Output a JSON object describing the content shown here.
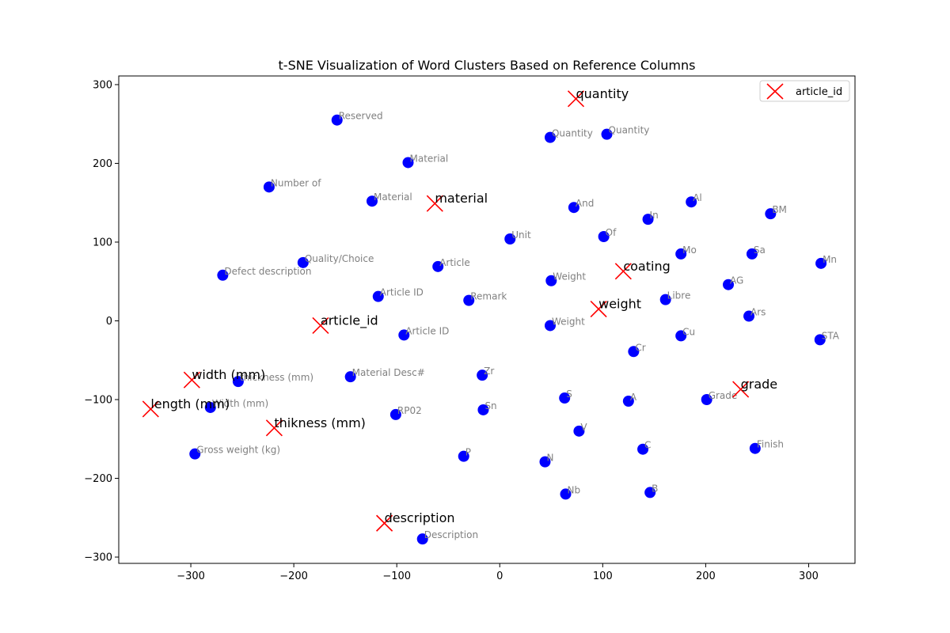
{
  "chart_data": {
    "type": "scatter",
    "title": "t-SNE Visualization of Word Clusters Based on Reference Columns",
    "xlabel": "",
    "ylabel": "",
    "xlim": [
      -370,
      345
    ],
    "ylim": [
      -308,
      311
    ],
    "xticks": [
      -300,
      -200,
      -100,
      0,
      100,
      200,
      300
    ],
    "yticks": [
      -300,
      -200,
      -100,
      0,
      100,
      200,
      300
    ],
    "grid": false,
    "legend": {
      "placement": "top-right",
      "entries": [
        {
          "label": "article_id",
          "marker": "x",
          "color": "#ff0000"
        }
      ]
    },
    "colors": {
      "points": "#0000ff",
      "reference": "#ff0000",
      "point_label": "#808080"
    },
    "series": [
      {
        "marker": "circle",
        "points": [
          {
            "x": -158,
            "y": 255,
            "label": "Reserved"
          },
          {
            "x": 49,
            "y": 233,
            "label": "Quantity"
          },
          {
            "x": 104,
            "y": 237,
            "label": "Quantity"
          },
          {
            "x": -89,
            "y": 201,
            "label": "Material"
          },
          {
            "x": -224,
            "y": 170,
            "label": "Number of"
          },
          {
            "x": -124,
            "y": 152,
            "label": "Material"
          },
          {
            "x": 72,
            "y": 144,
            "label": "And"
          },
          {
            "x": 186,
            "y": 151,
            "label": "Al"
          },
          {
            "x": 263,
            "y": 136,
            "label": "BM"
          },
          {
            "x": 144,
            "y": 129,
            "label": "In"
          },
          {
            "x": 10,
            "y": 104,
            "label": "Unit"
          },
          {
            "x": 101,
            "y": 107,
            "label": "Of"
          },
          {
            "x": 176,
            "y": 85,
            "label": "Mo"
          },
          {
            "x": 245,
            "y": 85,
            "label": "Sa"
          },
          {
            "x": 312,
            "y": 73,
            "label": "Mn"
          },
          {
            "x": -191,
            "y": 74,
            "label": "Quality/Choice"
          },
          {
            "x": -60,
            "y": 69,
            "label": "Article"
          },
          {
            "x": -269,
            "y": 58,
            "label": "Defect description"
          },
          {
            "x": 50,
            "y": 51,
            "label": "Weight"
          },
          {
            "x": 222,
            "y": 46,
            "label": "AG"
          },
          {
            "x": -118,
            "y": 31,
            "label": "Article ID"
          },
          {
            "x": -30,
            "y": 26,
            "label": "Remark"
          },
          {
            "x": 161,
            "y": 27,
            "label": "Libre"
          },
          {
            "x": 242,
            "y": 6,
            "label": "Ars"
          },
          {
            "x": 49,
            "y": -6,
            "label": "Weight"
          },
          {
            "x": -93,
            "y": -18,
            "label": "Article ID"
          },
          {
            "x": 176,
            "y": -19,
            "label": "Cu"
          },
          {
            "x": 311,
            "y": -24,
            "label": "STA"
          },
          {
            "x": 130,
            "y": -39,
            "label": "Cr"
          },
          {
            "x": -17,
            "y": -69,
            "label": "Zr"
          },
          {
            "x": -145,
            "y": -71,
            "label": "Material Desc#"
          },
          {
            "x": -254,
            "y": -77,
            "label": "thickness (mm)"
          },
          {
            "x": 63,
            "y": -98,
            "label": "S"
          },
          {
            "x": 125,
            "y": -102,
            "label": "A"
          },
          {
            "x": 201,
            "y": -100,
            "label": "Grade"
          },
          {
            "x": -281,
            "y": -110,
            "label": "Width (mm)"
          },
          {
            "x": -16,
            "y": -113,
            "label": "Sn"
          },
          {
            "x": -101,
            "y": -119,
            "label": "RP02"
          },
          {
            "x": 77,
            "y": -140,
            "label": "V"
          },
          {
            "x": 139,
            "y": -163,
            "label": "C"
          },
          {
            "x": 248,
            "y": -162,
            "label": "Finish"
          },
          {
            "x": -296,
            "y": -169,
            "label": "Gross weight (kg)"
          },
          {
            "x": -35,
            "y": -172,
            "label": "P"
          },
          {
            "x": 44,
            "y": -179,
            "label": "N"
          },
          {
            "x": 64,
            "y": -220,
            "label": "Nb"
          },
          {
            "x": 146,
            "y": -218,
            "label": "B"
          },
          {
            "x": -75,
            "y": -277,
            "label": "Description"
          }
        ]
      },
      {
        "name": "article_id",
        "marker": "x",
        "points": [
          {
            "x": 74,
            "y": 282,
            "label": "quantity"
          },
          {
            "x": -63,
            "y": 149,
            "label": "material"
          },
          {
            "x": 120,
            "y": 63,
            "label": "coating"
          },
          {
            "x": 96,
            "y": 15,
            "label": "weight"
          },
          {
            "x": -174,
            "y": -6,
            "label": "article_id"
          },
          {
            "x": -299,
            "y": -75,
            "label": "width (mm)"
          },
          {
            "x": 234,
            "y": -87,
            "label": "grade"
          },
          {
            "x": -339,
            "y": -112,
            "label": "length (mm)"
          },
          {
            "x": -219,
            "y": -136,
            "label": "thikness (mm)"
          },
          {
            "x": -112,
            "y": -257,
            "label": "description"
          }
        ]
      }
    ]
  }
}
